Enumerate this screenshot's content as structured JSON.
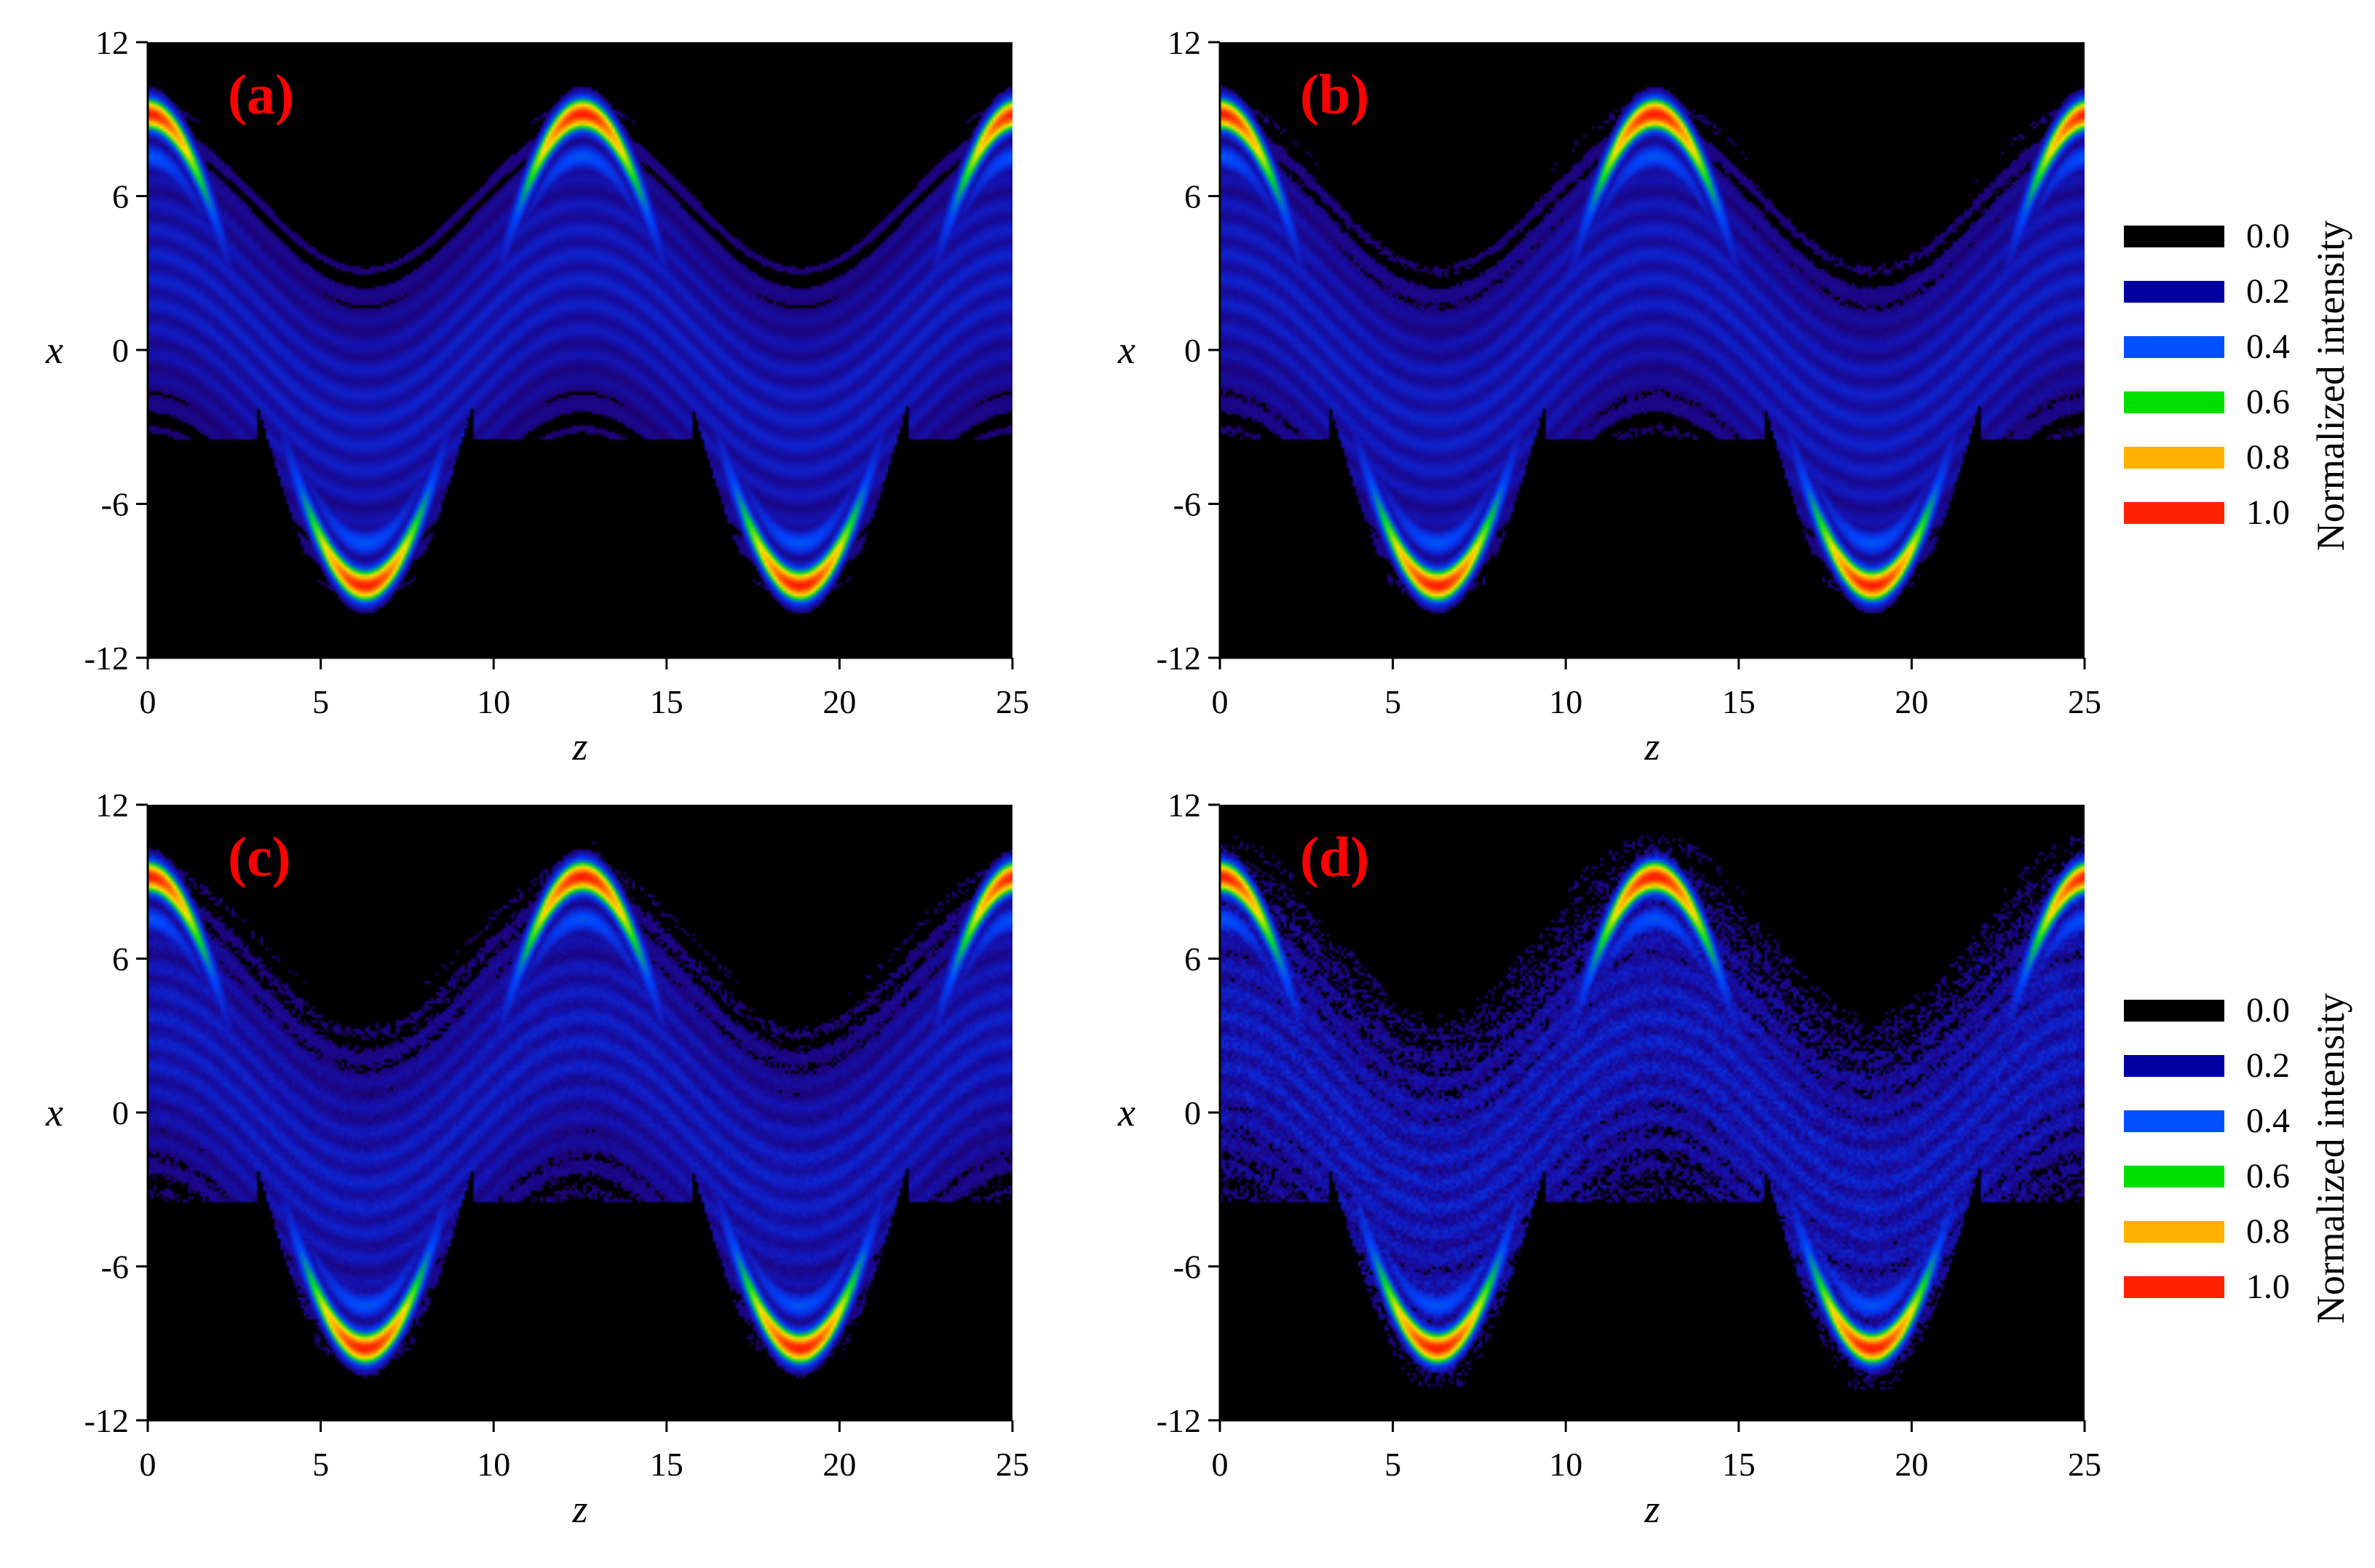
{
  "chart_data": [
    {
      "type": "heatmap",
      "panel_label": "(a)",
      "xlabel": "z",
      "ylabel": "x",
      "xlim": [
        0,
        25
      ],
      "ylim": [
        -12,
        12
      ],
      "xticks": [
        "0",
        "5",
        "10",
        "15",
        "20",
        "25"
      ],
      "yticks": [
        "12",
        "6",
        "0",
        "-6",
        "-12"
      ],
      "colorbar": {
        "title": "Normalized intensity",
        "levels": [
          "0.0",
          "0.2",
          "0.4",
          "0.6",
          "0.8",
          "1.0"
        ],
        "colors": [
          "#000000",
          "#0000a0",
          "#0050ff",
          "#00e000",
          "#ffb000",
          "#ff2000"
        ]
      },
      "pattern": {
        "description_values": {
          "beam_center_amplitude": 9.2,
          "beam_period": 12.57,
          "peak_intensity": 1.0
        },
        "noise": 0
      }
    },
    {
      "type": "heatmap",
      "panel_label": "(b)",
      "xlabel": "z",
      "ylabel": "x",
      "xlim": [
        0,
        25
      ],
      "ylim": [
        -12,
        12
      ],
      "xticks": [
        "0",
        "5",
        "10",
        "15",
        "20",
        "25"
      ],
      "yticks": [
        "12",
        "6",
        "0",
        "-6",
        "-12"
      ],
      "pattern": {
        "description_values": {
          "beam_center_amplitude": 9.2,
          "beam_period": 12.57,
          "peak_intensity": 1.0
        },
        "noise": 0.2
      }
    },
    {
      "type": "heatmap",
      "panel_label": "(c)",
      "xlabel": "z",
      "ylabel": "x",
      "xlim": [
        0,
        25
      ],
      "ylim": [
        -12,
        12
      ],
      "xticks": [
        "0",
        "5",
        "10",
        "15",
        "20",
        "25"
      ],
      "yticks": [
        "12",
        "6",
        "0",
        "-6",
        "-12"
      ],
      "colorbar": {
        "title": "Normalized intensity",
        "levels": [
          "0.0",
          "0.2",
          "0.4",
          "0.6",
          "0.8",
          "1.0"
        ],
        "colors": [
          "#000000",
          "#0000a0",
          "#0050ff",
          "#00e000",
          "#ffb000",
          "#ff2000"
        ]
      },
      "pattern": {
        "description_values": {
          "beam_center_amplitude": 9.2,
          "beam_period": 12.57,
          "peak_intensity": 1.0
        },
        "noise": 0.4
      }
    },
    {
      "type": "heatmap",
      "panel_label": "(d)",
      "xlabel": "z",
      "ylabel": "x",
      "xlim": [
        0,
        25
      ],
      "ylim": [
        -12,
        12
      ],
      "xticks": [
        "0",
        "5",
        "10",
        "15",
        "20",
        "25"
      ],
      "yticks": [
        "12",
        "6",
        "0",
        "-6",
        "-12"
      ],
      "pattern": {
        "description_values": {
          "beam_center_amplitude": 9.2,
          "beam_period": 12.57,
          "peak_intensity": 1.0
        },
        "noise": 1.0
      }
    }
  ],
  "legends": [
    {
      "title": "Normalized intensity",
      "items": [
        {
          "label": "0.0",
          "color": "#000000"
        },
        {
          "label": "0.2",
          "color": "#0000a0"
        },
        {
          "label": "0.4",
          "color": "#0050ff"
        },
        {
          "label": "0.6",
          "color": "#00e000"
        },
        {
          "label": "0.8",
          "color": "#ffb000"
        },
        {
          "label": "1.0",
          "color": "#ff2000"
        }
      ]
    },
    {
      "title": "Normalized intensity",
      "items": [
        {
          "label": "0.0",
          "color": "#000000"
        },
        {
          "label": "0.2",
          "color": "#0000a0"
        },
        {
          "label": "0.4",
          "color": "#0050ff"
        },
        {
          "label": "0.6",
          "color": "#00e000"
        },
        {
          "label": "0.8",
          "color": "#ffb000"
        },
        {
          "label": "1.0",
          "color": "#ff2000"
        }
      ]
    }
  ]
}
